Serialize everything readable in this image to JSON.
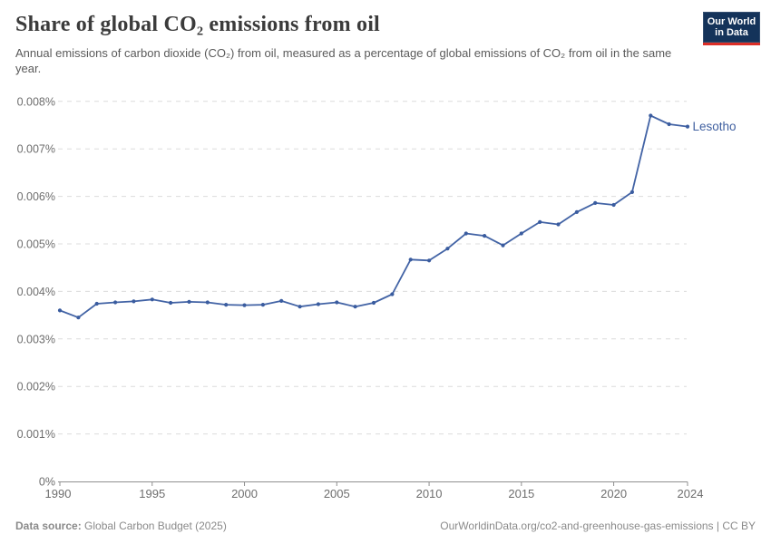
{
  "header": {
    "title": "Share of global CO₂ emissions from oil",
    "subtitle": "Annual emissions of carbon dioxide (CO₂) from oil, measured as a percentage of global emissions of CO₂ from oil in the same year.",
    "logo": {
      "line1": "Our World",
      "line2": "in Data"
    }
  },
  "footer": {
    "source_label": "Data source:",
    "source_value": "Global Carbon Budget (2025)",
    "link": "OurWorldinData.org/co2-and-greenhouse-gas-emissions | CC BY"
  },
  "chart_data": {
    "type": "line",
    "title": "Share of global CO₂ emissions from oil",
    "entity": "Lesotho",
    "unit": "%",
    "xlabel": "",
    "ylabel": "",
    "ylim": [
      0,
      0.008
    ],
    "ytick_step": 0.001,
    "ytick_labels": [
      "0%",
      "0.001%",
      "0.002%",
      "0.003%",
      "0.004%",
      "0.005%",
      "0.006%",
      "0.007%",
      "0.008%"
    ],
    "xticks": [
      1990,
      1995,
      2000,
      2005,
      2010,
      2015,
      2020,
      2024
    ],
    "grid": "dashed-horizontal",
    "legend_position": "line-end-label",
    "x": [
      1990,
      1991,
      1992,
      1993,
      1994,
      1995,
      1996,
      1997,
      1998,
      1999,
      2000,
      2001,
      2002,
      2003,
      2004,
      2005,
      2006,
      2007,
      2008,
      2009,
      2010,
      2011,
      2012,
      2013,
      2014,
      2015,
      2016,
      2017,
      2018,
      2019,
      2020,
      2021,
      2022,
      2023,
      2024
    ],
    "values": [
      0.0036,
      0.00345,
      0.00374,
      0.00377,
      0.00379,
      0.00383,
      0.00376,
      0.00378,
      0.00377,
      0.00372,
      0.00371,
      0.00372,
      0.0038,
      0.00368,
      0.00373,
      0.00377,
      0.00368,
      0.00376,
      0.00394,
      0.00467,
      0.00465,
      0.0049,
      0.00522,
      0.00517,
      0.00497,
      0.00522,
      0.00546,
      0.00541,
      0.00567,
      0.00586,
      0.00582,
      0.00609,
      0.0077,
      0.00752,
      0.00747
    ]
  },
  "colors": {
    "line": "#4263a5",
    "dot": "#3a5c9f",
    "entity_label": "#4060a0",
    "grid": "#dcdcdc",
    "axis": "#8f8f8f",
    "tick_label": "#6e6e6e",
    "title": "#3b3b3b",
    "subtitle": "#5a5a5a",
    "footer": "#8a8a8a",
    "logo_bg": "#14335a",
    "logo_red": "#dc2e27"
  }
}
